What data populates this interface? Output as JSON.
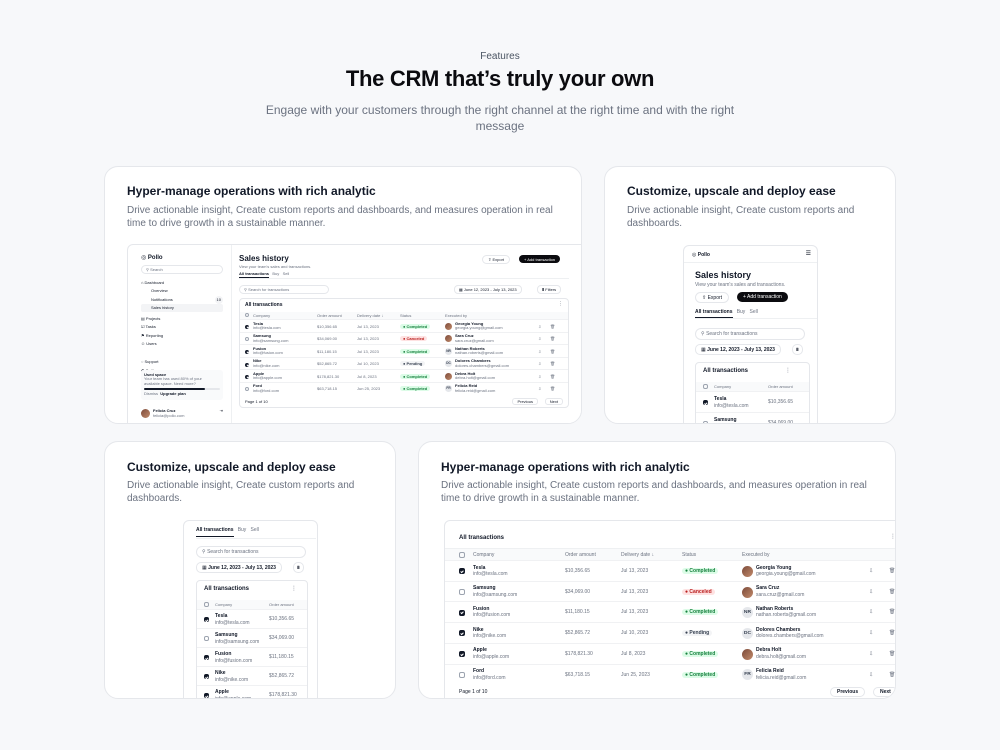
{
  "hero": {
    "eyebrow": "Features",
    "title": "The CRM that’s truly your own",
    "subtitle": "Engage with your customers through the right channel  at the right time and with the right message"
  },
  "cards": {
    "c1": {
      "title": "Hyper-manage operations with rich analytic",
      "desc": "Drive  actionable insight, Create custom reports and dashboards, and measures operation in real time to drive growth in a sustainable manner."
    },
    "c2": {
      "title": "Customize, upscale and deploy ease",
      "desc": "Drive  actionable insight, Create custom reports and dashboards."
    },
    "c3": {
      "title": "Customize, upscale and deploy ease",
      "desc": "Drive  actionable insight, Create custom reports and dashboards."
    },
    "c4": {
      "title": "Hyper-manage operations with rich analytic",
      "desc": "Drive  actionable insight, Create custom reports and dashboards, and measures operation in real time to drive growth in a sustainable manner."
    }
  },
  "app": {
    "brand": "Pollo",
    "search_placeholder": "Search",
    "nav": {
      "dashboard": "Dashboard",
      "overview": "Overview",
      "notifications": "Notifications",
      "notifications_count": "10",
      "sales_history": "Sales history",
      "projects": "Projects",
      "tasks": "Tasks",
      "reporting": "Reporting",
      "users": "Users",
      "support": "Support",
      "settings": "Settings"
    },
    "storage": {
      "title": "Used space",
      "text": "Your team has used 80% of your available space. Need more?",
      "dismiss": "Dismiss",
      "upgrade": "Upgrade plan",
      "used_fraction": 0.8
    },
    "user": {
      "name": "Felicia Cruz",
      "email": "felicia@pollo.com"
    },
    "page_title": "Sales history",
    "page_subtitle": "View your team's sales and transactions.",
    "export": "Export",
    "add": "Add transaction",
    "tabs": [
      "All transactions",
      "Buy",
      "Sell"
    ],
    "tx_search_placeholder": "Search for transactions",
    "date_range": "June 12, 2023 - July 13, 2023",
    "filters": "Filters",
    "table_title": "All transactions",
    "columns": {
      "company": "Company",
      "amount": "Order amount",
      "date": "Delivery date ↓",
      "date_plain": "Delivery date",
      "status": "Status",
      "executed": "Executed by"
    },
    "rows": [
      {
        "company": "Tesla",
        "email": "info@tesla.com",
        "amount": "$10,356.65",
        "date": "Jul 13, 2023",
        "status": "Completed",
        "s": "completed",
        "checked": true,
        "person": "Georgia Young",
        "pemail": "georgia.young@gmail.com",
        "initials": "",
        "photo": true
      },
      {
        "company": "Samsung",
        "email": "info@samsung.com",
        "amount": "$34,069.00",
        "date": "Jul 13, 2023",
        "status": "Canceled",
        "s": "canceled",
        "checked": false,
        "person": "Sara Cruz",
        "pemail": "sara.cruz@gmail.com",
        "initials": "",
        "photo": true
      },
      {
        "company": "Fusion",
        "email": "info@fusion.com",
        "amount": "$11,180.15",
        "date": "Jul 13, 2023",
        "status": "Completed",
        "s": "completed",
        "checked": true,
        "person": "Nathan Roberts",
        "pemail": "nathan.roberts@gmail.com",
        "initials": "NR",
        "photo": false
      },
      {
        "company": "Nike",
        "email": "info@nike.com",
        "amount": "$52,865.72",
        "date": "Jul 10, 2023",
        "status": "Pending",
        "s": "pending",
        "checked": true,
        "person": "Dolores Chambers",
        "pemail": "dolores.chambers@gmail.com",
        "initials": "DC",
        "photo": false
      },
      {
        "company": "Apple",
        "email": "info@apple.com",
        "amount": "$178,821.30",
        "date": "Jul 8, 2023",
        "status": "Completed",
        "s": "completed",
        "checked": true,
        "person": "Debra Holt",
        "pemail": "debra.holt@gmail.com",
        "initials": "",
        "photo": true
      },
      {
        "company": "Ford",
        "email": "info@ford.com",
        "amount": "$63,718.15",
        "date": "Jun 25, 2023",
        "status": "Completed",
        "s": "completed",
        "checked": false,
        "person": "Felicia Reid",
        "pemail": "felicia.reid@gmail.com",
        "initials": "FR",
        "photo": false
      }
    ],
    "pagination": {
      "page": "Page 1 of 10",
      "prev": "Previous",
      "next": "Next"
    }
  }
}
